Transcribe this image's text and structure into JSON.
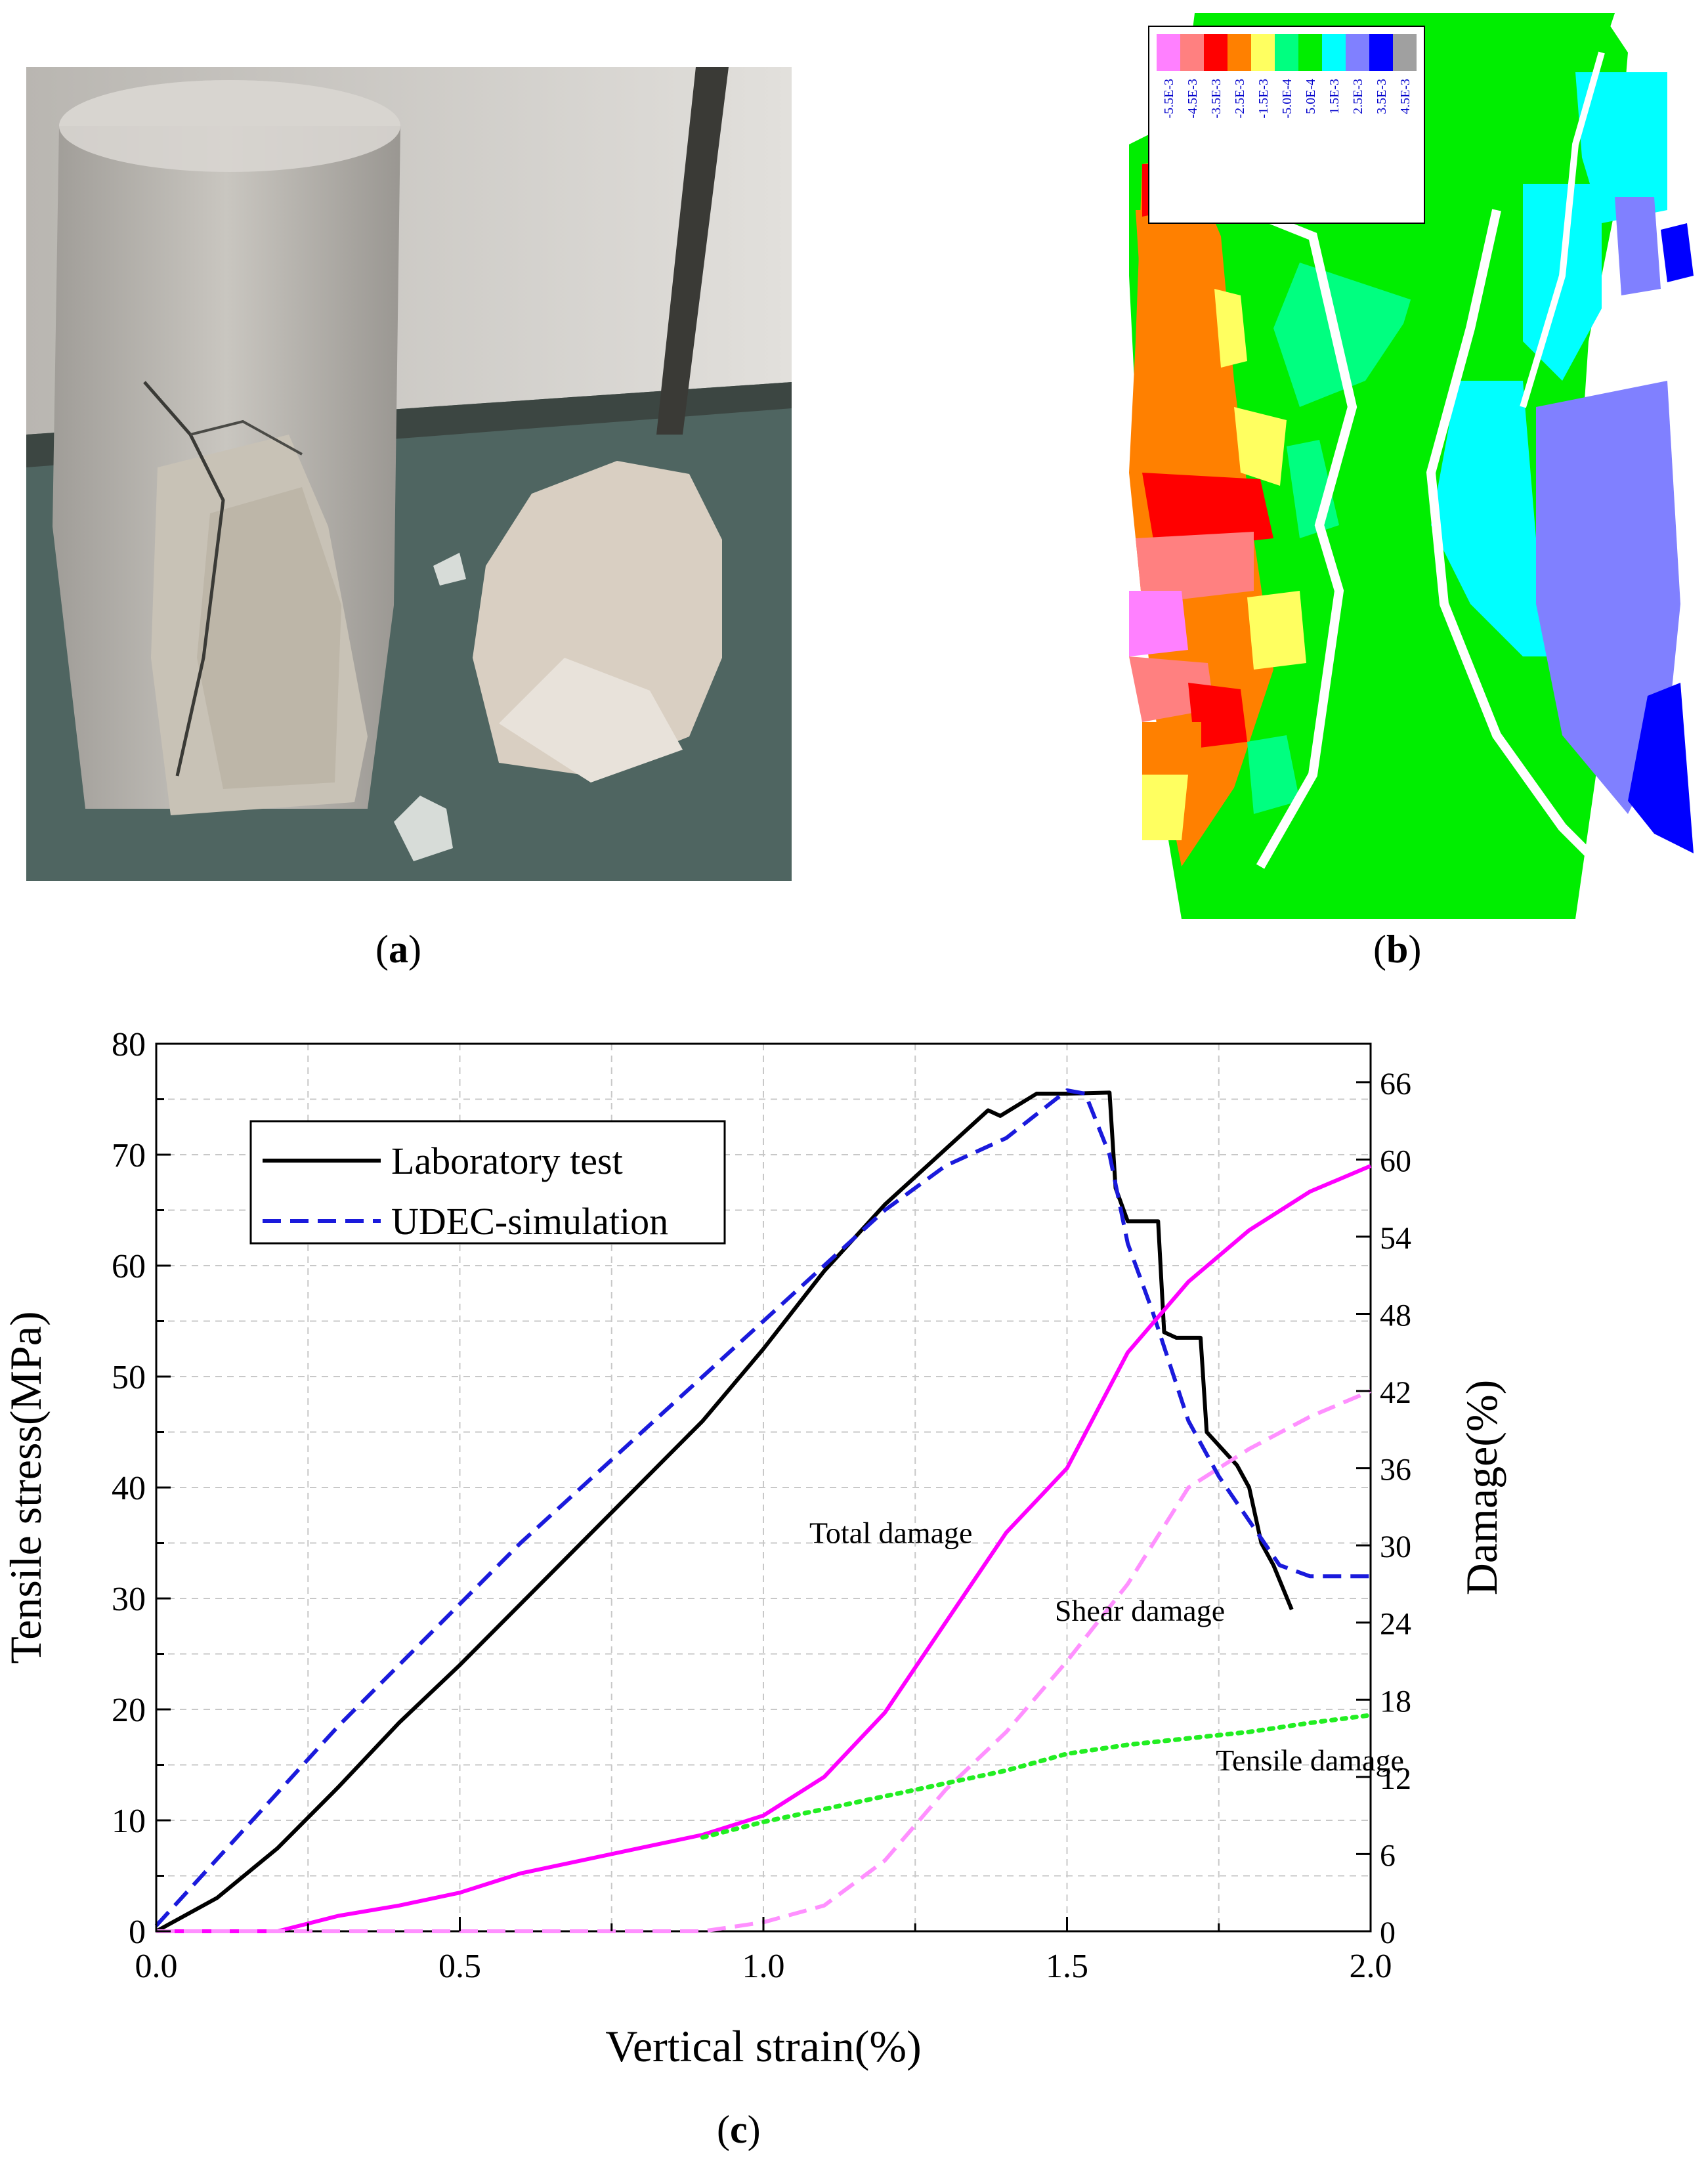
{
  "captions": {
    "a": "a",
    "b": "b",
    "c": "c"
  },
  "contour_legend": {
    "labels": [
      "-5.5E-3",
      "-4.5E-3",
      "-3.5E-3",
      "-2.5E-3",
      "-1.5E-3",
      "-5.0E-4",
      "5.0E-4",
      "1.5E-3",
      "2.5E-3",
      "3.5E-3",
      "4.5E-3"
    ],
    "colors": [
      "#ff80ff",
      "#ff8080",
      "#ff0000",
      "#ff8000",
      "#ffff60",
      "#00ff80",
      "#00ee00",
      "#00ffff",
      "#8080ff",
      "#0000ff",
      "#a0a0a0"
    ]
  },
  "chart_data": {
    "type": "line",
    "xlabel": "Vertical strain(%)",
    "ylabel": "Tensile stress(MPa)",
    "y2label": "Damage(%)",
    "xlim": [
      0,
      2.0
    ],
    "ylim": [
      0,
      80
    ],
    "y2lim": [
      0,
      69
    ],
    "xticks": [
      "0.0",
      "0.5",
      "1.0",
      "1.5",
      "2.0"
    ],
    "yticks": [
      "0",
      "10",
      "20",
      "30",
      "40",
      "50",
      "60",
      "70",
      "80"
    ],
    "y2ticks": [
      "0",
      "6",
      "12",
      "18",
      "24",
      "30",
      "36",
      "42",
      "48",
      "54",
      "60",
      "66"
    ],
    "grid": true,
    "legend_position": "top-left",
    "legend": [
      "Laboratory  test",
      "UDEC-simulation"
    ],
    "annotations": [
      {
        "text": "Total damage",
        "x": 1.21,
        "y": 35
      },
      {
        "text": "Shear damage",
        "x": 1.62,
        "y": 28
      },
      {
        "text": "Tensile damage",
        "x": 1.9,
        "y": 14.5
      }
    ],
    "series": [
      {
        "name": "Laboratory  test",
        "axis": "left",
        "color": "#000000",
        "dash": "solid",
        "x": [
          0,
          0.1,
          0.2,
          0.3,
          0.4,
          0.5,
          0.6,
          0.7,
          0.8,
          0.9,
          1.0,
          1.1,
          1.2,
          1.3,
          1.37,
          1.39,
          1.45,
          1.5,
          1.57,
          1.58,
          1.6,
          1.65,
          1.66,
          1.68,
          1.72,
          1.73,
          1.78,
          1.8,
          1.82,
          1.84,
          1.87
        ],
        "y": [
          0,
          3,
          7.5,
          13,
          18.8,
          24,
          29.5,
          35,
          40.5,
          46,
          52.5,
          59.5,
          65.5,
          70.5,
          74,
          73.5,
          75.5,
          75.5,
          75.6,
          67,
          64,
          64,
          54,
          53.5,
          53.5,
          45,
          42,
          40,
          35,
          33,
          29
        ]
      },
      {
        "name": "UDEC-simulation",
        "axis": "left",
        "color": "#1a1adc",
        "dash": "dashed",
        "x": [
          0,
          0.1,
          0.2,
          0.3,
          0.4,
          0.5,
          0.6,
          0.7,
          0.8,
          0.9,
          1.0,
          1.1,
          1.2,
          1.3,
          1.4,
          1.5,
          1.53,
          1.57,
          1.6,
          1.64,
          1.7,
          1.75,
          1.8,
          1.85,
          1.9,
          2.0
        ],
        "y": [
          0.5,
          6.5,
          12.5,
          18.5,
          24,
          29.5,
          35,
          40,
          45,
          50,
          55,
          60,
          65,
          69,
          71.5,
          75.8,
          75.5,
          70,
          62,
          56,
          46,
          41,
          37,
          33,
          32,
          32
        ]
      },
      {
        "name": "Total damage",
        "axis": "right",
        "color": "#ff00ff",
        "dash": "solid",
        "x": [
          0,
          0.2,
          0.3,
          0.4,
          0.5,
          0.6,
          0.7,
          0.8,
          0.9,
          1.0,
          1.1,
          1.2,
          1.3,
          1.4,
          1.5,
          1.6,
          1.7,
          1.8,
          1.9,
          2.0
        ],
        "y": [
          0,
          0,
          1.2,
          2,
          3,
          4.5,
          5.5,
          6.5,
          7.5,
          9,
          12,
          17,
          24,
          31,
          36,
          45,
          50.5,
          54.5,
          57.5,
          59.5
        ]
      },
      {
        "name": "Shear damage",
        "axis": "right",
        "color": "#ff90ff",
        "dash": "dashed",
        "x": [
          0,
          0.9,
          1.0,
          1.1,
          1.2,
          1.3,
          1.4,
          1.5,
          1.6,
          1.7,
          1.8,
          1.9,
          2.0
        ],
        "y": [
          0,
          0,
          0.7,
          2,
          5.5,
          11,
          15.5,
          21,
          27,
          34.5,
          37.5,
          40,
          42
        ]
      },
      {
        "name": "Tensile damage",
        "axis": "right",
        "color": "#22ee22",
        "dash": "dotted",
        "x": [
          0.9,
          1.0,
          1.1,
          1.2,
          1.3,
          1.4,
          1.5,
          1.6,
          1.7,
          1.8,
          1.9,
          2.0
        ],
        "y": [
          7.3,
          8.5,
          9.5,
          10.5,
          11.5,
          12.5,
          13.8,
          14.5,
          15,
          15.5,
          16.2,
          16.8
        ]
      }
    ]
  }
}
